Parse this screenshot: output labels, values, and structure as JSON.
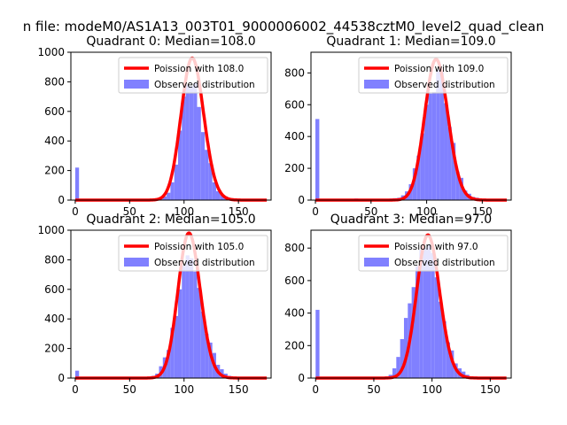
{
  "figure": {
    "suptitle": "n file: modeM0/AS1A13_003T01_9000006002_44538cztM0_level2_quad_clean"
  },
  "colors": {
    "poisson_line": "#ff0000",
    "observed_bars": "#8080ff",
    "axis": "#000000",
    "background": "#ffffff"
  },
  "chart_data": [
    {
      "type": "bar",
      "panel": "quadrant-0",
      "title": "Quadrant 0: Median=108.0",
      "xlabel": "",
      "ylabel": "",
      "xlim": [
        -4,
        180
      ],
      "ylim": [
        0,
        1000
      ],
      "xticks": [
        0,
        50,
        100,
        150
      ],
      "yticks": [
        0,
        200,
        400,
        600,
        800,
        1000
      ],
      "grid": false,
      "legend_position": "upper right",
      "legend": [
        "Poission with 108.0",
        "Observed distribution"
      ],
      "poisson_mean": 108.0,
      "poisson_peak": 960,
      "bin_width": 3.5,
      "hist_x": [
        0,
        3.5,
        7,
        10.5,
        14,
        17.5,
        21,
        24.5,
        28,
        31.5,
        35,
        38.5,
        42,
        45.5,
        49,
        52.5,
        56,
        59.5,
        63,
        66.5,
        70,
        73.5,
        77,
        80.5,
        84,
        87.5,
        91,
        94.5,
        98,
        101.5,
        105,
        108.5,
        112,
        115.5,
        119,
        122.5,
        126,
        129.5,
        133,
        136.5,
        140,
        143.5,
        147,
        150.5,
        154,
        157.5,
        161,
        164.5,
        168,
        171.5,
        175
      ],
      "hist_y": [
        220,
        5,
        0,
        0,
        0,
        0,
        0,
        0,
        0,
        0,
        0,
        0,
        0,
        0,
        0,
        0,
        0,
        0,
        0,
        3,
        5,
        8,
        12,
        25,
        50,
        120,
        240,
        470,
        700,
        780,
        770,
        790,
        630,
        460,
        340,
        250,
        120,
        60,
        40,
        25,
        15,
        8,
        4,
        2,
        0,
        0,
        0,
        0,
        0,
        0,
        0
      ],
      "series": [
        {
          "name": "Poission with 108.0",
          "kind": "line"
        },
        {
          "name": "Observed distribution",
          "kind": "hist"
        }
      ]
    },
    {
      "type": "bar",
      "panel": "quadrant-1",
      "title": "Quadrant 1: Median=109.0",
      "xlabel": "",
      "ylabel": "",
      "xlim": [
        -4,
        176
      ],
      "ylim": [
        0,
        930
      ],
      "xticks": [
        0,
        50,
        100,
        150
      ],
      "yticks": [
        0,
        200,
        400,
        600,
        800
      ],
      "grid": false,
      "legend_position": "upper right",
      "legend": [
        "Poission with 109.0",
        "Observed distribution"
      ],
      "poisson_mean": 109.0,
      "poisson_peak": 885,
      "bin_width": 3.5,
      "hist_x": [
        0,
        3.5,
        7,
        10.5,
        14,
        17.5,
        21,
        24.5,
        28,
        31.5,
        35,
        38.5,
        42,
        45.5,
        49,
        52.5,
        56,
        59.5,
        63,
        66.5,
        70,
        73.5,
        77,
        80.5,
        84,
        87.5,
        91,
        94.5,
        98,
        101.5,
        105,
        108.5,
        112,
        115.5,
        119,
        122.5,
        126,
        129.5,
        133,
        136.5,
        140,
        143.5,
        147,
        150.5,
        154,
        157.5,
        161,
        164.5,
        168
      ],
      "hist_y": [
        510,
        8,
        2,
        0,
        0,
        0,
        0,
        0,
        0,
        0,
        10,
        5,
        5,
        3,
        5,
        5,
        5,
        5,
        8,
        10,
        12,
        15,
        30,
        55,
        100,
        200,
        280,
        420,
        600,
        670,
        680,
        820,
        810,
        610,
        460,
        360,
        180,
        140,
        60,
        40,
        20,
        15,
        5,
        3,
        0,
        0,
        0,
        0,
        0
      ],
      "series": [
        {
          "name": "Poission with 109.0",
          "kind": "line"
        },
        {
          "name": "Observed distribution",
          "kind": "hist"
        }
      ]
    },
    {
      "type": "bar",
      "panel": "quadrant-2",
      "title": "Quadrant 2: Median=105.0",
      "xlabel": "",
      "ylabel": "",
      "xlim": [
        -4,
        180
      ],
      "ylim": [
        0,
        1000
      ],
      "xticks": [
        0,
        50,
        100,
        150
      ],
      "yticks": [
        0,
        200,
        400,
        600,
        800,
        1000
      ],
      "grid": false,
      "legend_position": "upper right",
      "legend": [
        "Poission with 105.0",
        "Observed distribution"
      ],
      "poisson_mean": 105.0,
      "poisson_peak": 980,
      "bin_width": 3.5,
      "hist_x": [
        0,
        3.5,
        7,
        10.5,
        14,
        17.5,
        21,
        24.5,
        28,
        31.5,
        35,
        38.5,
        42,
        45.5,
        49,
        52.5,
        56,
        59.5,
        63,
        66.5,
        70,
        73.5,
        77,
        80.5,
        84,
        87.5,
        91,
        94.5,
        98,
        101.5,
        105,
        108.5,
        112,
        115.5,
        119,
        122.5,
        126,
        129.5,
        133,
        136.5,
        140,
        143.5,
        147,
        150.5,
        154,
        157.5,
        161,
        164.5,
        168,
        171.5,
        175
      ],
      "hist_y": [
        50,
        3,
        0,
        0,
        0,
        0,
        0,
        0,
        0,
        0,
        0,
        0,
        0,
        0,
        0,
        0,
        5,
        5,
        8,
        10,
        15,
        30,
        80,
        140,
        190,
        340,
        420,
        600,
        760,
        830,
        810,
        720,
        610,
        450,
        300,
        240,
        170,
        90,
        60,
        30,
        15,
        8,
        3,
        0,
        0,
        0,
        0,
        0,
        0,
        0,
        0
      ],
      "series": [
        {
          "name": "Poission with 105.0",
          "kind": "line"
        },
        {
          "name": "Observed distribution",
          "kind": "hist"
        }
      ]
    },
    {
      "type": "bar",
      "panel": "quadrant-3",
      "title": "Quadrant 3: Median=97.0",
      "xlabel": "",
      "ylabel": "",
      "xlim": [
        -4,
        168
      ],
      "ylim": [
        0,
        910
      ],
      "xticks": [
        0,
        50,
        100,
        150
      ],
      "yticks": [
        0,
        200,
        400,
        600,
        800
      ],
      "grid": false,
      "legend_position": "upper right",
      "legend": [
        "Poission with 97.0",
        "Observed distribution"
      ],
      "poisson_mean": 97.0,
      "poisson_peak": 880,
      "bin_width": 3.3,
      "hist_x": [
        0,
        3.3,
        6.6,
        9.9,
        13.2,
        16.5,
        19.8,
        23.1,
        26.4,
        29.7,
        33,
        36.3,
        39.6,
        42.9,
        46.2,
        49.5,
        52.8,
        56.1,
        59.4,
        62.7,
        66,
        69.3,
        72.6,
        75.9,
        79.2,
        82.5,
        85.8,
        89.1,
        92.4,
        95.7,
        99,
        102.3,
        105.6,
        108.9,
        112.2,
        115.5,
        118.8,
        122.1,
        125.4,
        128.7,
        132,
        135.3,
        138.6,
        141.9,
        145.2,
        148.5,
        151.8,
        155.1,
        158.4
      ],
      "hist_y": [
        420,
        5,
        0,
        0,
        0,
        0,
        0,
        0,
        0,
        0,
        0,
        0,
        0,
        0,
        0,
        0,
        5,
        8,
        10,
        20,
        60,
        130,
        240,
        370,
        460,
        560,
        690,
        790,
        800,
        820,
        770,
        620,
        470,
        350,
        220,
        170,
        90,
        60,
        40,
        20,
        10,
        5,
        3,
        0,
        0,
        0,
        0,
        0,
        0
      ],
      "series": [
        {
          "name": "Poission with 97.0",
          "kind": "line"
        },
        {
          "name": "Observed distribution",
          "kind": "hist"
        }
      ]
    }
  ]
}
